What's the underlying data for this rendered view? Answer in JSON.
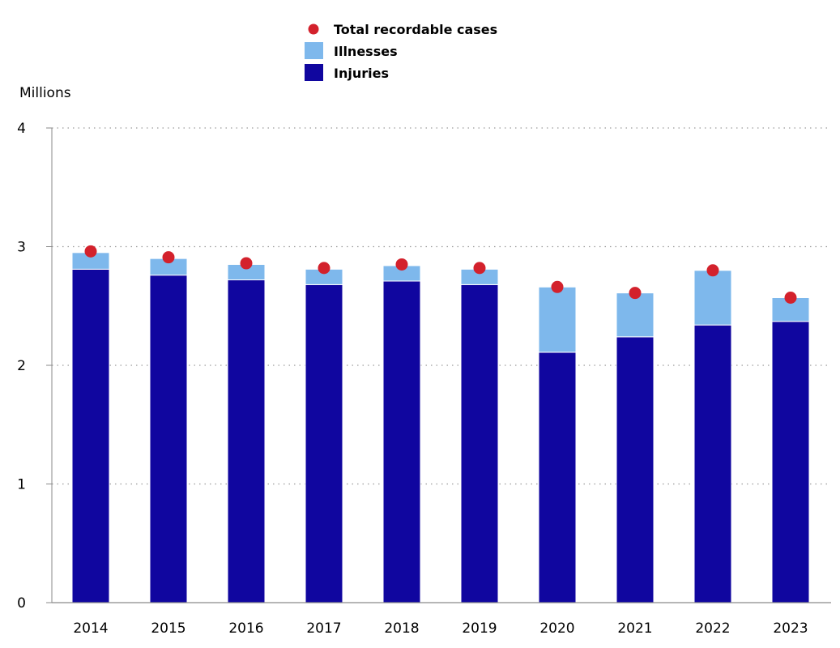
{
  "chart_data": {
    "type": "bar",
    "stacked": true,
    "ylabel": "Millions",
    "xlabel": "",
    "ylim": [
      0,
      4
    ],
    "yticks": [
      "0",
      "1",
      "2",
      "3",
      "4"
    ],
    "grid": "horizontal-dotted",
    "legend_position": "top-center",
    "categories": [
      "2014",
      "2015",
      "2016",
      "2017",
      "2018",
      "2019",
      "2020",
      "2021",
      "2022",
      "2023"
    ],
    "series": [
      {
        "name": "Injuries",
        "kind": "bar",
        "color": "#10069f",
        "values": [
          2.81,
          2.76,
          2.72,
          2.68,
          2.71,
          2.68,
          2.11,
          2.24,
          2.34,
          2.37
        ]
      },
      {
        "name": "Illnesses",
        "kind": "bar",
        "color": "#7eb8ec",
        "values": [
          0.14,
          0.14,
          0.13,
          0.13,
          0.13,
          0.13,
          0.55,
          0.37,
          0.46,
          0.2
        ]
      },
      {
        "name": "Total recordable cases",
        "kind": "marker",
        "color": "#d3212c",
        "values": [
          2.96,
          2.91,
          2.86,
          2.82,
          2.85,
          2.82,
          2.66,
          2.61,
          2.8,
          2.57
        ]
      }
    ],
    "legend": [
      {
        "label": "Total recordable cases",
        "marker": "dot",
        "color": "#d3212c"
      },
      {
        "label": "Illnesses",
        "marker": "square",
        "color": "#7eb8ec"
      },
      {
        "label": "Injuries",
        "marker": "square",
        "color": "#10069f"
      }
    ]
  }
}
